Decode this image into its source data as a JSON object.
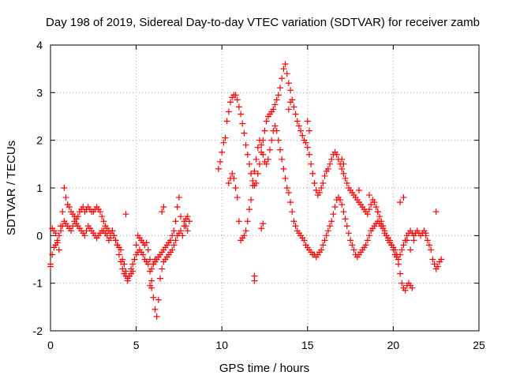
{
  "chart_data": {
    "type": "scatter",
    "title": "Day 198 of 2019, Sidereal Day-to-day VTEC variation (SDTVAR) for receiver zamb",
    "xlabel": "GPS time / hours",
    "ylabel": "SDTVAR / TECUs",
    "xlim": [
      0,
      25
    ],
    "ylim": [
      -2,
      4
    ],
    "xticks": [
      "0",
      "5",
      "10",
      "15",
      "20",
      "25"
    ],
    "yticks": [
      "-2",
      "-1",
      "0",
      "1",
      "2",
      "3",
      "4"
    ],
    "grid": true,
    "marker": "+",
    "color": "#ff0000",
    "series": [
      {
        "name": "SDTVAR",
        "x": [
          0.0,
          0.1,
          0.2,
          0.3,
          0.4,
          0.5,
          0.6,
          0.7,
          0.8,
          0.9,
          1.0,
          1.1,
          1.2,
          1.3,
          1.4,
          1.5,
          1.6,
          1.7,
          1.8,
          1.9,
          2.0,
          2.1,
          2.2,
          2.3,
          2.4,
          2.5,
          2.6,
          2.7,
          2.8,
          2.9,
          3.0,
          3.1,
          3.2,
          3.3,
          3.4,
          3.5,
          3.6,
          3.7,
          3.8,
          3.9,
          4.0,
          4.1,
          4.2,
          4.3,
          4.4,
          4.5,
          4.6,
          4.7,
          4.8,
          4.9,
          5.0,
          5.1,
          5.2,
          5.3,
          5.4,
          5.5,
          5.6,
          5.7,
          5.8,
          5.9,
          6.0,
          6.1,
          6.2,
          6.3,
          6.4,
          6.5,
          6.6,
          6.7,
          6.8,
          6.9,
          7.0,
          7.1,
          7.2,
          7.3,
          7.4,
          7.5,
          7.6,
          7.7,
          7.8,
          7.9,
          8.0,
          8.1,
          0.0,
          0.1,
          0.2,
          0.3,
          0.4,
          0.5,
          0.6,
          0.7,
          0.8,
          0.9,
          1.0,
          1.1,
          1.2,
          1.3,
          1.4,
          1.5,
          1.6,
          1.7,
          1.8,
          1.9,
          2.0,
          2.1,
          2.2,
          2.3,
          2.4,
          2.5,
          2.6,
          2.7,
          2.8,
          2.9,
          3.0,
          3.1,
          3.2,
          3.3,
          3.4,
          3.5,
          3.6,
          3.7,
          3.8,
          3.9,
          4.0,
          4.1,
          4.2,
          4.3,
          4.4,
          4.5,
          4.6,
          4.7,
          4.8,
          4.9,
          5.0,
          5.1,
          5.2,
          5.3,
          5.4,
          5.5,
          5.6,
          5.7,
          5.8,
          5.9,
          6.0,
          6.1,
          6.2,
          6.3,
          6.4,
          6.5,
          6.6,
          6.7,
          6.8,
          6.9,
          7.0,
          7.1,
          7.2,
          7.3,
          7.4,
          7.5,
          7.6,
          4.4,
          5.8,
          5.9,
          6.0,
          6.1,
          6.5,
          6.6,
          7.8,
          7.9,
          8.0,
          9.8,
          9.9,
          10.0,
          10.1,
          10.2,
          10.3,
          10.4,
          10.5,
          10.6,
          10.7,
          10.8,
          10.9,
          11.0,
          11.1,
          11.2,
          11.3,
          11.4,
          11.5,
          11.6,
          11.7,
          11.8,
          11.9,
          12.0,
          12.1,
          12.2,
          12.3,
          12.4,
          12.5,
          12.6,
          12.7,
          12.8,
          12.9,
          13.0,
          13.1,
          13.2,
          13.3,
          13.4,
          13.5,
          13.6,
          13.7,
          13.8,
          13.9,
          14.0,
          14.1,
          14.2,
          14.3,
          14.4,
          14.5,
          14.6,
          14.7,
          14.8,
          14.9,
          15.0,
          15.1,
          15.2,
          15.3,
          15.4,
          15.5,
          15.6,
          15.7,
          15.8,
          15.9,
          16.0,
          16.1,
          16.2,
          16.3,
          16.4,
          16.5,
          16.6,
          16.7,
          16.8,
          16.9,
          17.0,
          17.1,
          17.2,
          17.3,
          17.4,
          17.5,
          17.6,
          17.7,
          17.8,
          17.9,
          18.0,
          18.1,
          18.2,
          18.3,
          18.4,
          18.5,
          18.6,
          18.7,
          18.8,
          18.9,
          19.0,
          19.1,
          19.2,
          19.3,
          19.4,
          19.5,
          19.6,
          19.7,
          19.8,
          19.9,
          20.0,
          20.1,
          20.2,
          20.3,
          20.4,
          20.5,
          20.6,
          20.7,
          20.8,
          20.9,
          21.0,
          21.1,
          10.4,
          10.5,
          10.6,
          10.7,
          10.8,
          10.9,
          11.0,
          11.1,
          11.2,
          11.3,
          11.4,
          11.5,
          11.6,
          11.7,
          11.8,
          11.9,
          12.0,
          12.1,
          12.2,
          12.3,
          12.4,
          12.5,
          12.6,
          12.7,
          12.8,
          12.9,
          13.0,
          13.1,
          13.2,
          13.3,
          13.4,
          13.5,
          13.6,
          13.7,
          13.8,
          13.9,
          14.0,
          14.1,
          14.2,
          14.3,
          14.4,
          14.5,
          14.6,
          14.7,
          14.8,
          14.9,
          15.0,
          15.1,
          15.2,
          15.3,
          15.4,
          15.5,
          15.6,
          15.7,
          15.8,
          15.9,
          16.0,
          16.1,
          16.2,
          16.3,
          16.4,
          16.5,
          16.6,
          16.7,
          16.8,
          16.9,
          17.0,
          17.1,
          17.2,
          17.3,
          17.4,
          17.5,
          17.6,
          17.7,
          17.8,
          17.9,
          18.0,
          18.1,
          18.2,
          18.3,
          18.4,
          18.5,
          18.6,
          18.7,
          18.8,
          18.9,
          19.0,
          19.1,
          19.2,
          19.3,
          19.4,
          19.5,
          19.6,
          19.7,
          19.8,
          19.9,
          20.0,
          20.1,
          20.2,
          20.3,
          20.4,
          20.5,
          20.6,
          20.7,
          20.8,
          20.9,
          21.0,
          21.1,
          21.2,
          21.3,
          21.4,
          21.5,
          21.6,
          21.7,
          21.8,
          21.9,
          22.0,
          22.1,
          22.2,
          22.3,
          22.4,
          22.5,
          22.6,
          22.7,
          22.8,
          11.9,
          11.9,
          12.3,
          12.4,
          13.9,
          14.0,
          15.0,
          15.1,
          17.0,
          17.1,
          18.0,
          18.6,
          19.1,
          20.4,
          20.6,
          20.8,
          21.0,
          21.2,
          21.9,
          22.5
        ],
        "y": [
          -0.65,
          0.15,
          0.1,
          0.05,
          -0.1,
          -0.3,
          0.2,
          0.5,
          1.0,
          0.8,
          0.65,
          0.6,
          0.5,
          0.45,
          0.4,
          0.35,
          0.4,
          0.5,
          0.55,
          0.6,
          0.5,
          0.55,
          0.6,
          0.55,
          0.5,
          0.5,
          0.55,
          0.6,
          0.55,
          0.5,
          0.4,
          0.3,
          0.2,
          0.15,
          0.1,
          0.05,
          0.1,
          0.0,
          -0.1,
          -0.2,
          -0.4,
          -0.55,
          -0.7,
          -0.8,
          -0.85,
          -0.9,
          -0.85,
          -0.8,
          -0.75,
          -0.5,
          -0.2,
          0.0,
          -0.05,
          -0.1,
          -0.15,
          -0.2,
          -0.15,
          -0.3,
          -0.5,
          -0.7,
          -0.6,
          -0.55,
          -0.5,
          -0.45,
          -0.4,
          -0.35,
          -0.3,
          -0.25,
          -0.2,
          -0.15,
          -0.1,
          0.0,
          0.1,
          0.3,
          0.6,
          0.8,
          0.4,
          0.0,
          0.2,
          0.35,
          0.4,
          0.3,
          -0.6,
          -0.4,
          -0.25,
          -0.2,
          -0.15,
          0.0,
          0.1,
          0.2,
          0.3,
          0.25,
          0.2,
          0.15,
          0.1,
          0.2,
          0.3,
          0.25,
          0.2,
          0.15,
          0.1,
          0.05,
          0.0,
          0.1,
          0.2,
          0.15,
          0.1,
          0.05,
          0.0,
          -0.05,
          0.0,
          0.05,
          0.1,
          0.1,
          0.05,
          0.0,
          -0.1,
          -0.05,
          0.1,
          0.0,
          -0.1,
          -0.2,
          -0.25,
          -0.3,
          -0.5,
          -0.6,
          -0.75,
          -0.95,
          -0.85,
          -0.7,
          -0.6,
          -0.5,
          -0.4,
          -0.35,
          -0.3,
          -0.35,
          -0.4,
          -0.5,
          -0.55,
          -0.6,
          -0.75,
          -1.1,
          -1.3,
          -1.55,
          -1.7,
          -1.35,
          -0.9,
          -0.7,
          -0.55,
          -0.5,
          -0.45,
          -0.4,
          -0.35,
          -0.3,
          -0.2,
          -0.1,
          0.0,
          0.05,
          0.1,
          0.45,
          -1.05,
          -0.95,
          -0.6,
          -0.5,
          0.5,
          0.6,
          0.3,
          0.2,
          0.1,
          1.4,
          1.55,
          1.75,
          1.95,
          2.05,
          2.4,
          2.6,
          2.8,
          2.9,
          2.95,
          2.95,
          2.85,
          2.7,
          2.55,
          2.35,
          2.15,
          1.9,
          1.7,
          1.5,
          1.3,
          1.15,
          1.05,
          1.1,
          1.3,
          1.5,
          1.75,
          2.0,
          2.2,
          2.4,
          2.5,
          2.55,
          2.6,
          2.65,
          2.75,
          2.85,
          2.95,
          3.1,
          3.3,
          3.5,
          3.6,
          3.4,
          3.2,
          3.05,
          2.85,
          2.7,
          2.55,
          2.4,
          2.3,
          2.2,
          2.1,
          2.0,
          1.95,
          1.85,
          1.7,
          1.5,
          1.3,
          1.1,
          0.95,
          0.85,
          0.9,
          1.0,
          1.1,
          1.25,
          1.35,
          1.4,
          1.5,
          1.6,
          1.7,
          1.75,
          1.7,
          1.6,
          1.5,
          1.4,
          1.3,
          1.2,
          1.1,
          1.0,
          0.95,
          0.9,
          0.85,
          0.8,
          0.75,
          0.7,
          0.65,
          0.6,
          0.55,
          0.5,
          0.45,
          0.55,
          0.65,
          0.75,
          0.7,
          0.6,
          0.5,
          0.4,
          0.3,
          0.2,
          0.1,
          0.0,
          -0.1,
          -0.15,
          -0.2,
          -0.25,
          -0.3,
          -0.4,
          -0.6,
          -0.8,
          -1.0,
          -1.1,
          -1.15,
          -1.05,
          -1.0,
          -1.05,
          -1.1,
          1.1,
          1.2,
          1.3,
          1.2,
          1.0,
          0.8,
          0.3,
          -0.1,
          -0.05,
          0.0,
          0.1,
          0.3,
          0.55,
          0.75,
          1.05,
          1.35,
          1.6,
          1.85,
          2.0,
          1.9,
          1.7,
          1.55,
          1.5,
          1.6,
          1.8,
          2.0,
          2.2,
          2.3,
          2.2,
          2.0,
          1.8,
          1.6,
          1.4,
          1.2,
          1.0,
          0.9,
          0.7,
          0.5,
          0.3,
          0.2,
          0.1,
          0.05,
          0.0,
          -0.05,
          -0.1,
          -0.2,
          -0.25,
          -0.3,
          -0.35,
          -0.4,
          -0.4,
          -0.45,
          -0.4,
          -0.35,
          -0.3,
          -0.2,
          -0.1,
          0.0,
          0.1,
          0.2,
          0.3,
          0.45,
          0.6,
          0.75,
          0.8,
          0.75,
          0.65,
          0.5,
          0.35,
          0.2,
          0.05,
          -0.1,
          -0.2,
          -0.3,
          -0.4,
          -0.45,
          -0.4,
          -0.35,
          -0.3,
          -0.25,
          -0.2,
          -0.1,
          0.0,
          0.1,
          0.15,
          0.2,
          0.25,
          0.3,
          0.25,
          0.2,
          0.15,
          0.05,
          0.0,
          -0.05,
          -0.1,
          -0.2,
          -0.3,
          -0.4,
          -0.45,
          -0.5,
          -0.4,
          -0.3,
          -0.2,
          -0.1,
          0.0,
          0.05,
          0.1,
          0.05,
          0.0,
          0.05,
          0.1,
          0.05,
          0.0,
          0.05,
          0.1,
          0.0,
          -0.1,
          -0.2,
          -0.3,
          -0.5,
          -0.6,
          -0.7,
          -0.65,
          -0.55,
          -0.5,
          -0.85,
          -0.95,
          0.15,
          0.25,
          2.65,
          2.8,
          2.4,
          2.2,
          1.6,
          1.5,
          0.95,
          0.85,
          0.5,
          0.7,
          0.8,
          -0.1,
          -0.3,
          -0.1,
          0.05,
          0.5
        ]
      }
    ]
  }
}
